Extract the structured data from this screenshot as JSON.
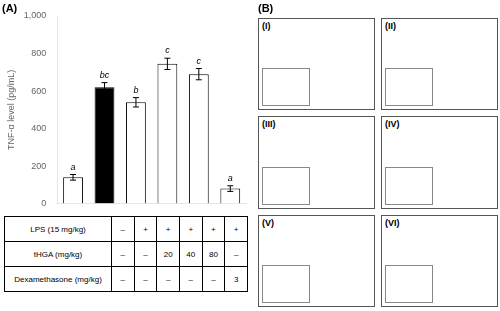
{
  "chart_data": {
    "type": "bar",
    "ylabel": "TNF-α level (pg/mL)",
    "categories": [
      null,
      null,
      null,
      null,
      null,
      null
    ],
    "values": [
      140,
      620,
      540,
      745,
      690,
      80
    ],
    "errors": [
      15,
      25,
      25,
      30,
      30,
      15
    ],
    "colors": [
      "white",
      "black",
      "white",
      "white",
      "white",
      "white"
    ],
    "annotations": [
      "a",
      "bc",
      "b",
      "c",
      "c",
      "a"
    ],
    "ylim": [
      0,
      1000
    ],
    "yticks": [
      0,
      200,
      400,
      600,
      800,
      1000
    ],
    "grid": false,
    "tick_labels": "y",
    "table": [
      [
        "LPS (15 mg/kg)",
        "–",
        "+",
        "+",
        "+",
        "+",
        "+"
      ],
      [
        "tHGA (mg/kg)",
        "–",
        "–",
        "20",
        "40",
        "80",
        "–"
      ],
      [
        "Dexamethasone (mg/kg)",
        "–",
        "–",
        "–",
        "–",
        "–",
        "3"
      ]
    ],
    "panel_labels": [
      "(A)",
      "(B)"
    ],
    "sub_labels": [
      "(I)",
      "(II)",
      "(III)",
      "(IV)",
      "(V)",
      "(VI)"
    ]
  }
}
